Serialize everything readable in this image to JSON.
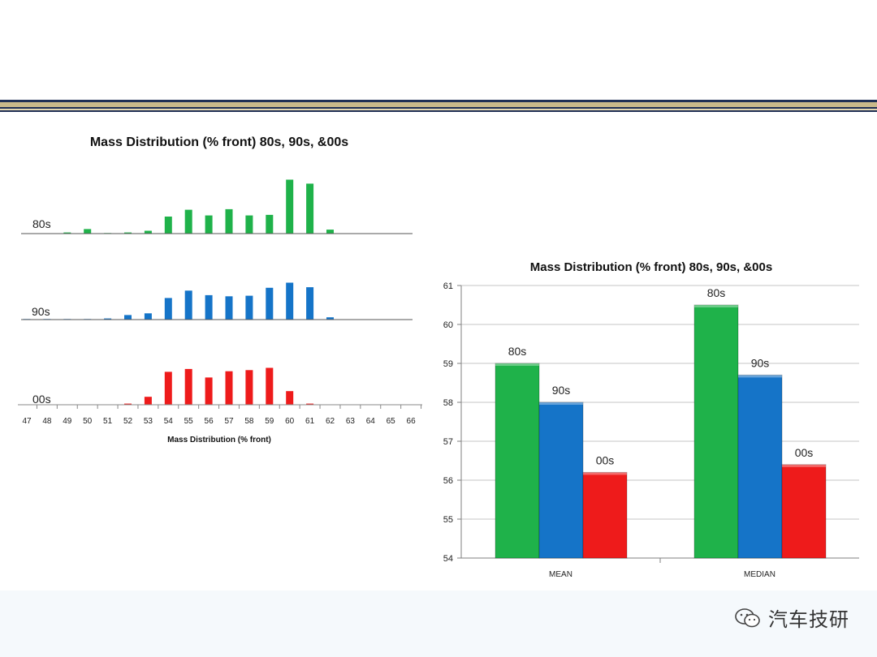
{
  "colors": {
    "s80": "#1fb24a",
    "s90": "#1574c8",
    "s00": "#ee1b1b",
    "rule_dark": "#1f2f55",
    "rule_gold": "#c9b98a",
    "axis": "#7f7f7f",
    "grid": "#c6c6c6"
  },
  "chart_data": [
    {
      "type": "bar",
      "title": "Mass Distribution (% front) 80s, 90s, &00s",
      "xlabel": "Mass Distribution (% front)",
      "categories": [
        "47",
        "48",
        "49",
        "50",
        "51",
        "52",
        "53",
        "54",
        "55",
        "56",
        "57",
        "58",
        "59",
        "60",
        "61",
        "62",
        "63",
        "64",
        "65",
        "66"
      ],
      "series": [
        {
          "name": "80s",
          "values": [
            0,
            0,
            0.2,
            0.8,
            0.1,
            0.2,
            0.5,
            3.0,
            4.2,
            3.2,
            4.3,
            3.2,
            3.3,
            9.5,
            8.8,
            0.7,
            0,
            0,
            0,
            0
          ]
        },
        {
          "name": "90s",
          "values": [
            0.1,
            0.1,
            0.1,
            0.1,
            0.2,
            0.8,
            1.1,
            3.8,
            5.1,
            4.3,
            4.1,
            4.2,
            5.6,
            6.5,
            5.7,
            0.4,
            0,
            0,
            0,
            0
          ]
        },
        {
          "name": "00s",
          "values": [
            0,
            0,
            0,
            0,
            0,
            0.2,
            1.4,
            5.8,
            6.3,
            4.8,
            5.9,
            6.1,
            6.5,
            2.4,
            0.2,
            0,
            0,
            0,
            0,
            0
          ]
        }
      ],
      "panel_labels": [
        "80s",
        "90s",
        "00s"
      ]
    },
    {
      "type": "bar",
      "title": "Mass Distribution (% front) 80s, 90s, &00s",
      "categories": [
        "MEAN",
        "MEDIAN"
      ],
      "series": [
        {
          "name": "80s",
          "values": [
            59.0,
            60.5
          ]
        },
        {
          "name": "90s",
          "values": [
            58.0,
            58.7
          ]
        },
        {
          "name": "00s",
          "values": [
            56.2,
            56.4
          ]
        }
      ],
      "ylim": [
        54,
        61
      ],
      "yticks": [
        "54",
        "55",
        "56",
        "57",
        "58",
        "59",
        "60",
        "61"
      ],
      "grid": true
    }
  ],
  "watermark": {
    "text": "汽车技研",
    "icon": "wechat-icon"
  }
}
